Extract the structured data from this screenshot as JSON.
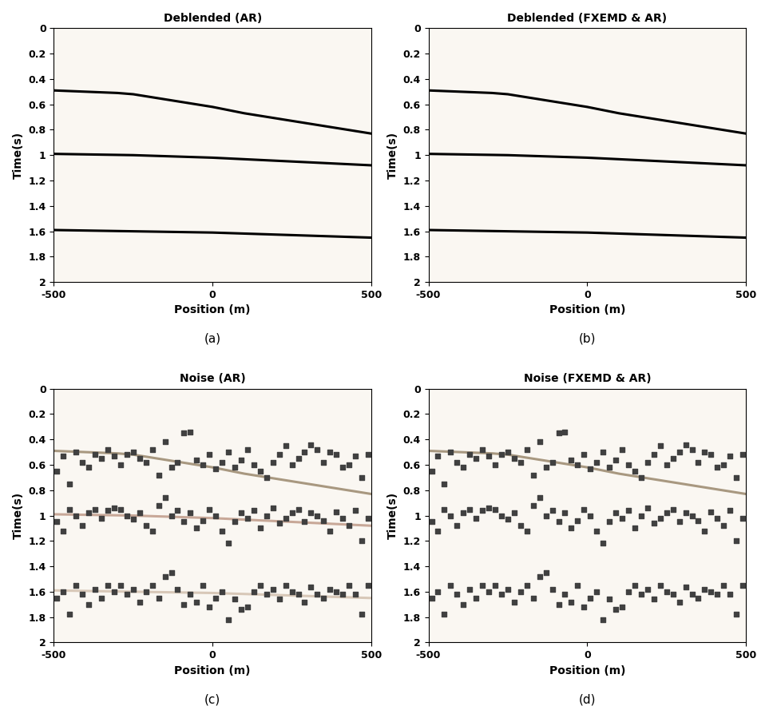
{
  "chart_data": [
    {
      "type": "line",
      "title": "Deblended (AR)",
      "x_label": "Position (m)",
      "y_label": "Time(s)",
      "caption": "(a)",
      "xlim": [
        -500,
        500
      ],
      "xticks": [
        -500,
        0,
        500
      ],
      "ylim": [
        2,
        0
      ],
      "yticks": [
        0,
        0.2,
        0.4,
        0.6,
        0.8,
        1,
        1.2,
        1.4,
        1.6,
        1.8,
        2
      ],
      "grid": false,
      "series": [
        {
          "type": "line",
          "color": "#000000",
          "line_style": "solid",
          "x": [
            -500,
            -400,
            -300,
            -250,
            -200,
            -100,
            0,
            100,
            200,
            300,
            400,
            500
          ],
          "values": [
            0.49,
            0.5,
            0.51,
            0.52,
            0.54,
            0.58,
            0.62,
            0.67,
            0.71,
            0.75,
            0.79,
            0.83
          ]
        },
        {
          "type": "line",
          "color": "#000000",
          "line_style": "solid",
          "x": [
            -500,
            -250,
            0,
            250,
            500
          ],
          "values": [
            0.99,
            1.0,
            1.02,
            1.05,
            1.08
          ]
        },
        {
          "type": "line",
          "color": "#000000",
          "line_style": "solid",
          "x": [
            -500,
            -250,
            0,
            250,
            500
          ],
          "values": [
            1.59,
            1.6,
            1.61,
            1.63,
            1.65
          ]
        }
      ]
    },
    {
      "type": "line",
      "title": "Deblended (FXEMD & AR)",
      "x_label": "Position (m)",
      "y_label": "Time(s)",
      "caption": "(b)",
      "xlim": [
        -500,
        500
      ],
      "xticks": [
        -500,
        0,
        500
      ],
      "ylim": [
        2,
        0
      ],
      "yticks": [
        0,
        0.2,
        0.4,
        0.6,
        0.8,
        1,
        1.2,
        1.4,
        1.6,
        1.8,
        2
      ],
      "grid": false,
      "series": [
        {
          "type": "line",
          "color": "#000000",
          "line_style": "solid",
          "x": [
            -500,
            -400,
            -300,
            -250,
            -200,
            -100,
            0,
            100,
            200,
            300,
            400,
            500
          ],
          "values": [
            0.49,
            0.5,
            0.51,
            0.52,
            0.54,
            0.58,
            0.62,
            0.67,
            0.71,
            0.75,
            0.79,
            0.83
          ]
        },
        {
          "type": "line",
          "color": "#000000",
          "line_style": "solid",
          "x": [
            -500,
            -250,
            0,
            250,
            500
          ],
          "values": [
            0.99,
            1.0,
            1.02,
            1.05,
            1.08
          ]
        },
        {
          "type": "line",
          "color": "#000000",
          "line_style": "solid",
          "x": [
            -500,
            -250,
            0,
            250,
            500
          ],
          "values": [
            1.59,
            1.6,
            1.61,
            1.63,
            1.65
          ]
        }
      ]
    },
    {
      "type": "scatter",
      "title": "Noise (AR)",
      "x_label": "Position (m)",
      "y_label": "Time(s)",
      "caption": "(c)",
      "xlim": [
        -500,
        500
      ],
      "xticks": [
        -500,
        0,
        500
      ],
      "ylim": [
        2,
        0
      ],
      "yticks": [
        0,
        0.2,
        0.4,
        0.6,
        0.8,
        1,
        1.2,
        1.4,
        1.6,
        1.8,
        2
      ],
      "grid": false,
      "series": [
        {
          "type": "line",
          "color": "#a89880",
          "line_style": "solid",
          "x": [
            -500,
            -400,
            -300,
            -250,
            -200,
            -100,
            0,
            100,
            200,
            300,
            400,
            500
          ],
          "values": [
            0.49,
            0.5,
            0.51,
            0.52,
            0.54,
            0.58,
            0.62,
            0.67,
            0.71,
            0.75,
            0.79,
            0.83
          ]
        },
        {
          "type": "line",
          "color": "#c8a898",
          "line_style": "solid",
          "x": [
            -500,
            -250,
            0,
            250,
            500
          ],
          "values": [
            0.99,
            1.0,
            1.02,
            1.05,
            1.08
          ]
        },
        {
          "type": "line",
          "color": "#d8c8b8",
          "line_style": "solid",
          "x": [
            -500,
            -250,
            0,
            250,
            500
          ],
          "values": [
            1.59,
            1.6,
            1.61,
            1.63,
            1.65
          ]
        },
        {
          "type": "scatter",
          "color": "#404040",
          "marker": "square",
          "x": [
            -490,
            -470,
            -450,
            -430,
            -410,
            -390,
            -370,
            -350,
            -330,
            -310,
            -290,
            -270,
            -250,
            -230,
            -210,
            -190,
            -170,
            -150,
            -130,
            -110,
            -90,
            -70,
            -50,
            -30,
            -10,
            10,
            30,
            50,
            70,
            90,
            110,
            130,
            150,
            170,
            190,
            210,
            230,
            250,
            270,
            290,
            310,
            330,
            350,
            370,
            390,
            410,
            430,
            450,
            470,
            490
          ],
          "values": [
            0.65,
            0.53,
            0.75,
            0.5,
            0.58,
            0.62,
            0.52,
            0.55,
            0.48,
            0.53,
            0.6,
            0.52,
            0.5,
            0.55,
            0.58,
            0.48,
            0.68,
            0.42,
            0.62,
            0.58,
            0.35,
            0.34,
            0.56,
            0.6,
            0.52,
            0.63,
            0.58,
            0.5,
            0.62,
            0.56,
            0.48,
            0.6,
            0.65,
            0.7,
            0.58,
            0.52,
            0.45,
            0.6,
            0.55,
            0.5,
            0.44,
            0.48,
            0.58,
            0.5,
            0.52,
            0.62,
            0.6,
            0.53,
            0.7,
            0.52
          ]
        },
        {
          "type": "scatter",
          "color": "#404040",
          "marker": "square",
          "x": [
            -490,
            -470,
            -450,
            -430,
            -410,
            -390,
            -370,
            -350,
            -330,
            -310,
            -290,
            -270,
            -250,
            -230,
            -210,
            -190,
            -170,
            -150,
            -130,
            -110,
            -90,
            -70,
            -50,
            -30,
            -10,
            10,
            30,
            50,
            70,
            90,
            110,
            130,
            150,
            170,
            190,
            210,
            230,
            250,
            270,
            290,
            310,
            330,
            350,
            370,
            390,
            410,
            430,
            450,
            470,
            490
          ],
          "values": [
            1.05,
            1.12,
            0.95,
            1.0,
            1.08,
            0.98,
            0.95,
            1.02,
            0.96,
            0.94,
            0.95,
            1.0,
            1.03,
            0.98,
            1.08,
            1.12,
            0.92,
            0.86,
            1.0,
            0.96,
            1.05,
            0.98,
            1.1,
            1.04,
            0.95,
            1.0,
            1.12,
            1.22,
            1.05,
            0.98,
            1.02,
            0.96,
            1.1,
            1.0,
            0.94,
            1.06,
            1.02,
            0.98,
            0.95,
            1.05,
            0.98,
            1.0,
            1.04,
            1.12,
            0.97,
            1.02,
            1.08,
            0.96,
            1.2,
            1.02
          ]
        },
        {
          "type": "scatter",
          "color": "#404040",
          "marker": "square",
          "x": [
            -490,
            -470,
            -450,
            -430,
            -410,
            -390,
            -370,
            -350,
            -330,
            -310,
            -290,
            -270,
            -250,
            -230,
            -210,
            -190,
            -170,
            -150,
            -130,
            -110,
            -90,
            -70,
            -50,
            -30,
            -10,
            10,
            30,
            50,
            70,
            90,
            110,
            130,
            150,
            170,
            190,
            210,
            230,
            250,
            270,
            290,
            310,
            330,
            350,
            370,
            390,
            410,
            430,
            450,
            470,
            490
          ],
          "values": [
            1.65,
            1.6,
            1.78,
            1.55,
            1.62,
            1.7,
            1.58,
            1.65,
            1.55,
            1.6,
            1.55,
            1.62,
            1.58,
            1.68,
            1.6,
            1.55,
            1.65,
            1.48,
            1.45,
            1.58,
            1.7,
            1.62,
            1.68,
            1.55,
            1.72,
            1.65,
            1.6,
            1.82,
            1.66,
            1.74,
            1.72,
            1.6,
            1.55,
            1.62,
            1.58,
            1.66,
            1.55,
            1.6,
            1.62,
            1.68,
            1.56,
            1.62,
            1.65,
            1.58,
            1.6,
            1.62,
            1.55,
            1.62,
            1.78,
            1.55
          ]
        }
      ]
    },
    {
      "type": "scatter",
      "title": "Noise (FXEMD & AR)",
      "x_label": "Position (m)",
      "y_label": "Time(s)",
      "caption": "(d)",
      "xlim": [
        -500,
        500
      ],
      "xticks": [
        -500,
        0,
        500
      ],
      "ylim": [
        2,
        0
      ],
      "yticks": [
        0,
        0.2,
        0.4,
        0.6,
        0.8,
        1,
        1.2,
        1.4,
        1.6,
        1.8,
        2
      ],
      "grid": false,
      "series": [
        {
          "type": "line",
          "color": "#a89880",
          "line_style": "solid",
          "x": [
            -500,
            -400,
            -300,
            -250,
            -200,
            -100,
            0,
            100,
            200,
            300,
            400,
            500
          ],
          "values": [
            0.49,
            0.5,
            0.51,
            0.52,
            0.54,
            0.58,
            0.62,
            0.67,
            0.71,
            0.75,
            0.79,
            0.83
          ]
        },
        {
          "type": "scatter",
          "color": "#404040",
          "marker": "square",
          "x": [
            -490,
            -470,
            -450,
            -430,
            -410,
            -390,
            -370,
            -350,
            -330,
            -310,
            -290,
            -270,
            -250,
            -230,
            -210,
            -190,
            -170,
            -150,
            -130,
            -110,
            -90,
            -70,
            -50,
            -30,
            -10,
            10,
            30,
            50,
            70,
            90,
            110,
            130,
            150,
            170,
            190,
            210,
            230,
            250,
            270,
            290,
            310,
            330,
            350,
            370,
            390,
            410,
            430,
            450,
            470,
            490
          ],
          "values": [
            0.65,
            0.53,
            0.75,
            0.5,
            0.58,
            0.62,
            0.52,
            0.55,
            0.48,
            0.53,
            0.6,
            0.52,
            0.5,
            0.55,
            0.58,
            0.48,
            0.68,
            0.42,
            0.62,
            0.58,
            0.35,
            0.34,
            0.56,
            0.6,
            0.52,
            0.63,
            0.58,
            0.5,
            0.62,
            0.56,
            0.48,
            0.6,
            0.65,
            0.7,
            0.58,
            0.52,
            0.45,
            0.6,
            0.55,
            0.5,
            0.44,
            0.48,
            0.58,
            0.5,
            0.52,
            0.62,
            0.6,
            0.53,
            0.7,
            0.52
          ]
        },
        {
          "type": "scatter",
          "color": "#404040",
          "marker": "square",
          "x": [
            -490,
            -470,
            -450,
            -430,
            -410,
            -390,
            -370,
            -350,
            -330,
            -310,
            -290,
            -270,
            -250,
            -230,
            -210,
            -190,
            -170,
            -150,
            -130,
            -110,
            -90,
            -70,
            -50,
            -30,
            -10,
            10,
            30,
            50,
            70,
            90,
            110,
            130,
            150,
            170,
            190,
            210,
            230,
            250,
            270,
            290,
            310,
            330,
            350,
            370,
            390,
            410,
            430,
            450,
            470,
            490
          ],
          "values": [
            1.05,
            1.12,
            0.95,
            1.0,
            1.08,
            0.98,
            0.95,
            1.02,
            0.96,
            0.94,
            0.95,
            1.0,
            1.03,
            0.98,
            1.08,
            1.12,
            0.92,
            0.86,
            1.0,
            0.96,
            1.05,
            0.98,
            1.1,
            1.04,
            0.95,
            1.0,
            1.12,
            1.22,
            1.05,
            0.98,
            1.02,
            0.96,
            1.1,
            1.0,
            0.94,
            1.06,
            1.02,
            0.98,
            0.95,
            1.05,
            0.98,
            1.0,
            1.04,
            1.12,
            0.97,
            1.02,
            1.08,
            0.96,
            1.2,
            1.02
          ]
        },
        {
          "type": "scatter",
          "color": "#404040",
          "marker": "square",
          "x": [
            -490,
            -470,
            -450,
            -430,
            -410,
            -390,
            -370,
            -350,
            -330,
            -310,
            -290,
            -270,
            -250,
            -230,
            -210,
            -190,
            -170,
            -150,
            -130,
            -110,
            -90,
            -70,
            -50,
            -30,
            -10,
            10,
            30,
            50,
            70,
            90,
            110,
            130,
            150,
            170,
            190,
            210,
            230,
            250,
            270,
            290,
            310,
            330,
            350,
            370,
            390,
            410,
            430,
            450,
            470,
            490
          ],
          "values": [
            1.65,
            1.6,
            1.78,
            1.55,
            1.62,
            1.7,
            1.58,
            1.65,
            1.55,
            1.6,
            1.55,
            1.62,
            1.58,
            1.68,
            1.6,
            1.55,
            1.65,
            1.48,
            1.45,
            1.58,
            1.7,
            1.62,
            1.68,
            1.55,
            1.72,
            1.65,
            1.6,
            1.82,
            1.66,
            1.74,
            1.72,
            1.6,
            1.55,
            1.62,
            1.58,
            1.66,
            1.55,
            1.6,
            1.62,
            1.68,
            1.56,
            1.62,
            1.65,
            1.58,
            1.6,
            1.62,
            1.55,
            1.62,
            1.78,
            1.55
          ]
        }
      ]
    }
  ]
}
